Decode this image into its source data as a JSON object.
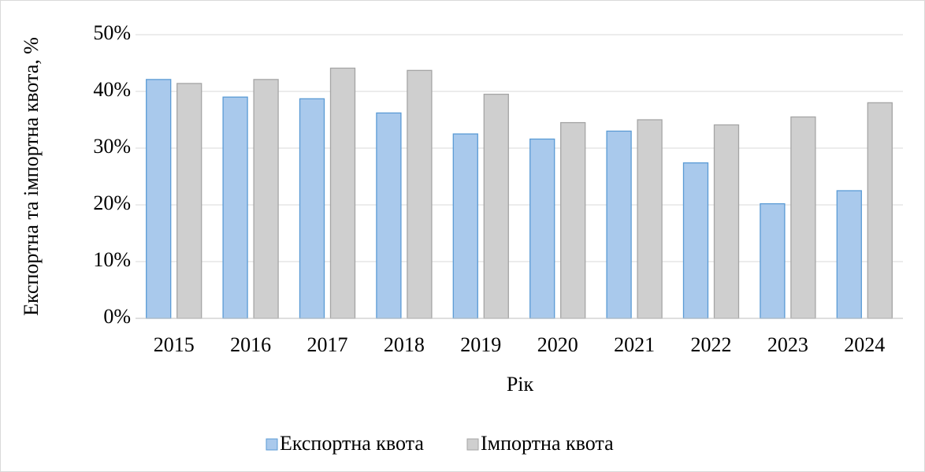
{
  "chart_data": {
    "type": "bar",
    "x_label": "Рік",
    "y_label": "Експортна та імпортна квота, %",
    "categories": [
      "2015",
      "2016",
      "2017",
      "2018",
      "2019",
      "2020",
      "2021",
      "2022",
      "2023",
      "2024"
    ],
    "series": [
      {
        "name": "Експортна квота",
        "color": "#a9c9ec",
        "values": [
          42.1,
          39.0,
          38.7,
          36.2,
          32.5,
          31.6,
          33.0,
          27.4,
          20.2,
          22.5
        ]
      },
      {
        "name": "Імпортна квота",
        "color": "#cfcfcf",
        "values": [
          41.4,
          42.1,
          44.1,
          43.7,
          39.5,
          34.5,
          35.0,
          34.1,
          35.5,
          38.0
        ]
      }
    ],
    "ylim": [
      0,
      50
    ],
    "yticks": [
      {
        "value": 0,
        "label": "0%"
      },
      {
        "value": 10,
        "label": "10%"
      },
      {
        "value": 20,
        "label": "20%"
      },
      {
        "value": 30,
        "label": "30%"
      },
      {
        "value": 40,
        "label": "40%"
      },
      {
        "value": 50,
        "label": "50%"
      }
    ],
    "grid": true,
    "legend": "bottom"
  }
}
